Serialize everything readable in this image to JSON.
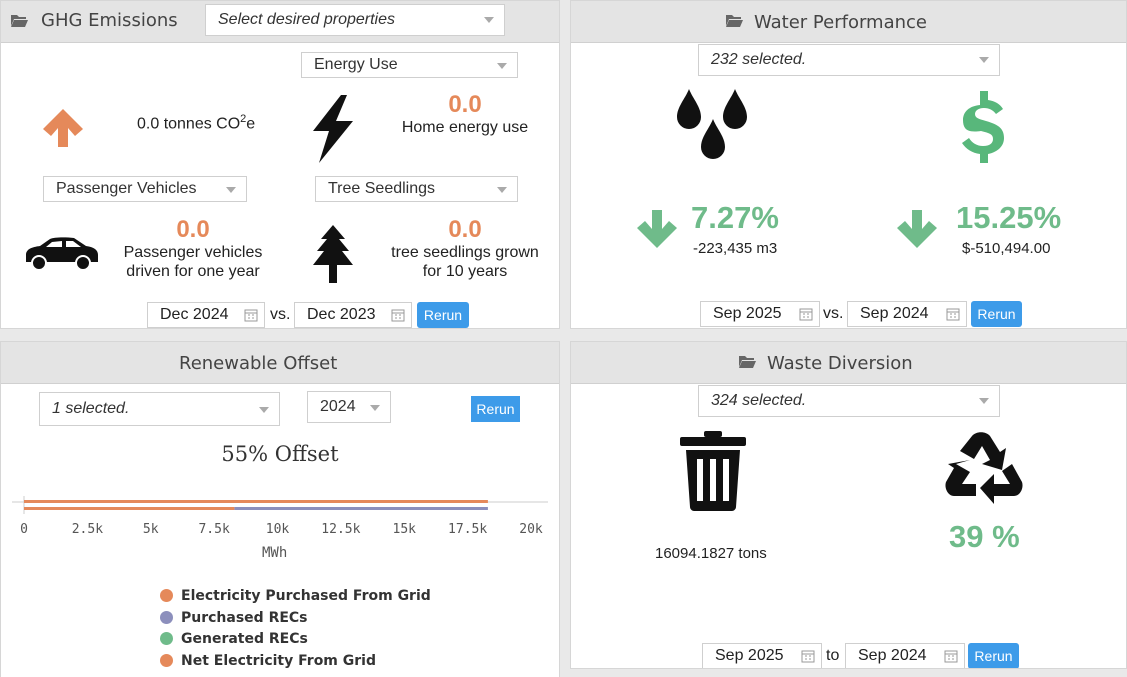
{
  "ghg": {
    "title": "GHG Emissions",
    "properties_select": "Select desired properties",
    "energy_select": "Energy Use",
    "co2_value": "0.0 tonnes CO",
    "co2_sup": "2",
    "co2_suffix": "e",
    "home_value": "0.0",
    "home_label": "Home energy use",
    "vehicles_select": "Passenger Vehicles",
    "tree_select": "Tree Seedlings",
    "vehicles_value": "0.0",
    "vehicles_label_1": "Passenger vehicles",
    "vehicles_label_2": "driven for one year",
    "tree_value": "0.0",
    "tree_label_1": "tree seedlings grown",
    "tree_label_2": "for 10 years",
    "date_from": "Dec 2024",
    "vs": "vs.",
    "date_to": "Dec 2023",
    "rerun": "Rerun"
  },
  "water": {
    "title": "Water Performance",
    "selected": "232 selected.",
    "pct_1": "7.27%",
    "val_1": "-223,435 m3",
    "pct_2": "15.25%",
    "val_2": "$-510,494.00",
    "date_from": "Sep 2025",
    "vs": "vs.",
    "date_to": "Sep 2024",
    "rerun": "Rerun"
  },
  "renewable": {
    "title": "Renewable Offset",
    "selected": "1 selected.",
    "year": "2024",
    "rerun": "Rerun",
    "offset": "55% Offset",
    "xlabel": "MWh",
    "legend": [
      {
        "label": "Electricity Purchased From Grid",
        "color": "#e5895a"
      },
      {
        "label": "Purchased RECs",
        "color": "#8c8fbc"
      },
      {
        "label": "Generated RECs",
        "color": "#6fbb8a"
      },
      {
        "label": "Net Electricity From Grid",
        "color": "#e5895a"
      }
    ]
  },
  "chart_data": {
    "type": "bar",
    "orientation": "horizontal",
    "x_ticks": [
      "0",
      "2.5k",
      "5k",
      "7.5k",
      "10k",
      "12.5k",
      "15k",
      "17.5k",
      "20k"
    ],
    "xlabel": "MWh",
    "xlim": [
      0,
      20000
    ],
    "series": [
      {
        "name": "Electricity Purchased From Grid",
        "values": [
          18300
        ]
      },
      {
        "name": "Purchased RECs",
        "values": [
          10000
        ]
      },
      {
        "name": "Generated RECs",
        "values": [
          0
        ]
      },
      {
        "name": "Net Electricity From Grid",
        "values": [
          8300
        ]
      }
    ]
  },
  "waste": {
    "title": "Waste Diversion",
    "selected": "324 selected.",
    "tons": "16094.1827 tons",
    "pct": "39 %",
    "date_from": "Sep 2025",
    "to": "to",
    "date_to": "Sep 2024",
    "rerun": "Rerun"
  }
}
